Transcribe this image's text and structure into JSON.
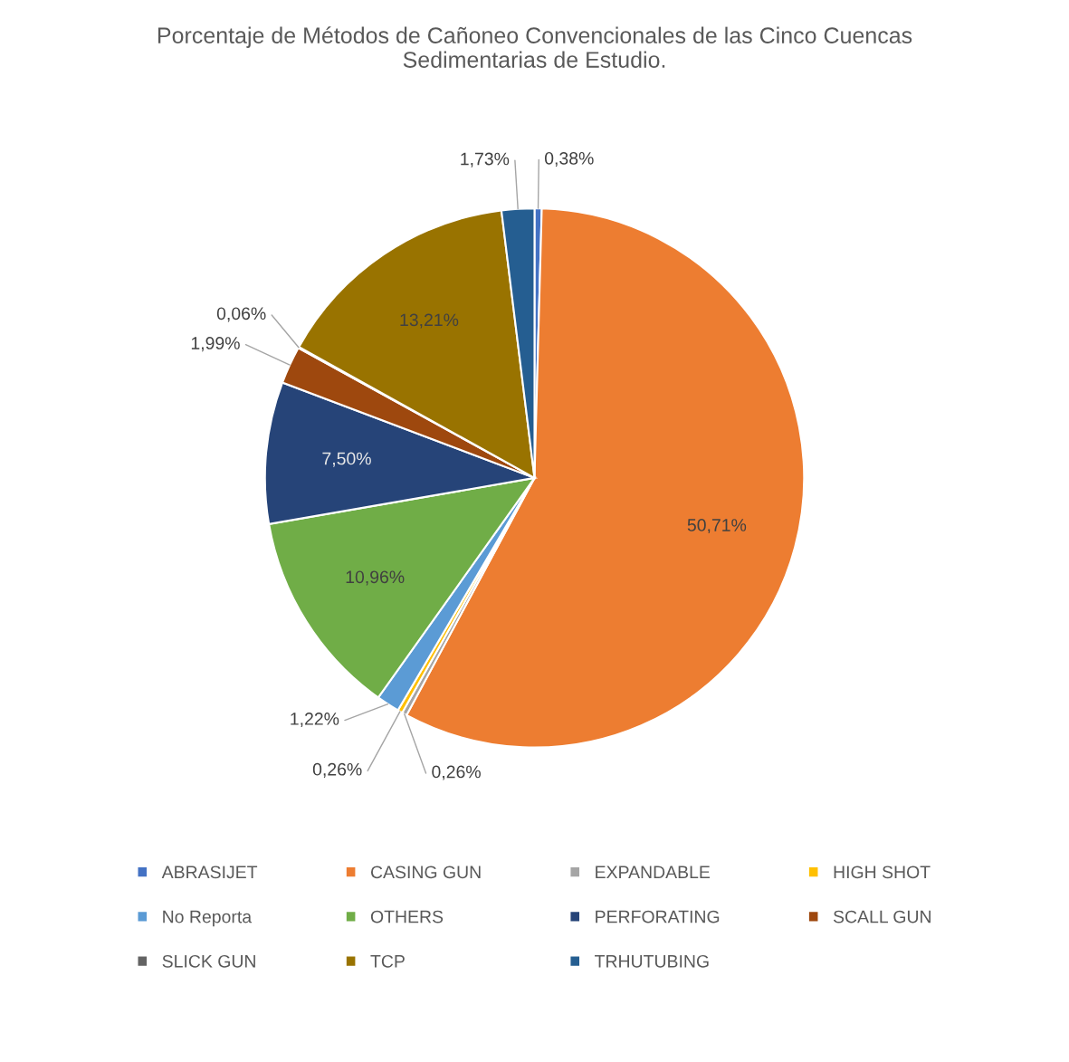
{
  "chart_data": {
    "type": "pie",
    "title": "Porcentaje de Métodos de Cañoneo Convencionales de las Cinco Cuencas\nSedimentarias de Estudio.",
    "categories": [
      "ABRASIJET",
      "CASING GUN",
      "EXPANDABLE",
      "HIGH SHOT",
      "No Reporta",
      "OTHERS",
      "PERFORATING",
      "SCALL GUN",
      "SLICK GUN",
      "TCP",
      "TRHUTUBING"
    ],
    "values": [
      0.38,
      50.71,
      0.26,
      0.26,
      1.22,
      10.96,
      7.5,
      1.99,
      0.06,
      13.21,
      1.73
    ],
    "value_labels": [
      "0,38%",
      "50,71%",
      "0,26%",
      "0,26%",
      "1,22%",
      "10,96%",
      "7,50%",
      "1,99%",
      "0,06%",
      "13,21%",
      "1,73%"
    ],
    "colors": [
      "#4472c4",
      "#ed7d31",
      "#a5a5a5",
      "#ffc000",
      "#5b9bd5",
      "#70ad47",
      "#264478",
      "#9e480e",
      "#636363",
      "#997300",
      "#255e91"
    ],
    "legend": "bottom"
  }
}
